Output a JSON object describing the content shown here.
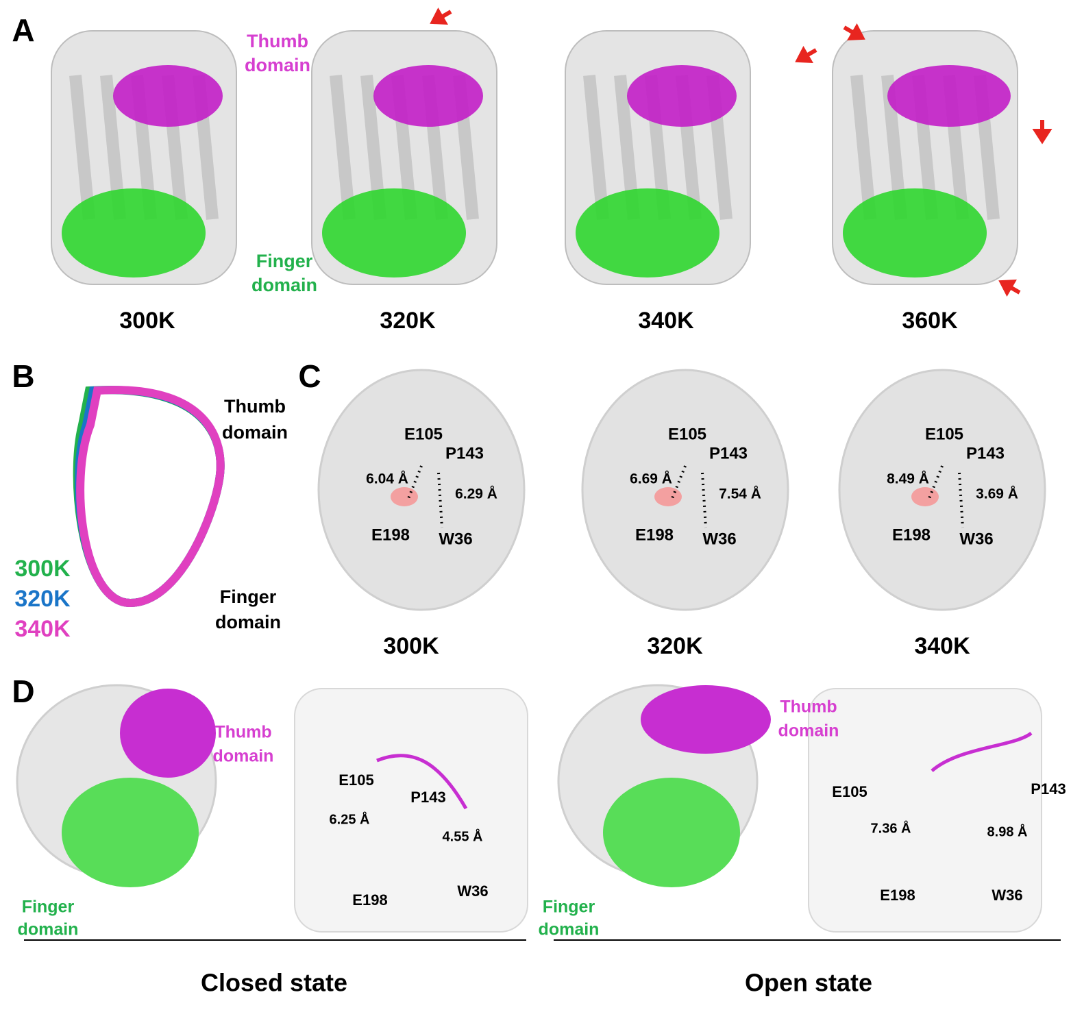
{
  "panel_a": {
    "label": "A",
    "thumb_label": [
      "Thumb",
      "domain"
    ],
    "finger_label": [
      "Finger",
      "domain"
    ],
    "temperatures": [
      "300K",
      "320K",
      "340K",
      "360K"
    ]
  },
  "panel_b": {
    "label": "B",
    "thumb_label": [
      "Thumb",
      "domain"
    ],
    "finger_label": [
      "Finger",
      "domain"
    ],
    "legend": [
      {
        "name": "300K",
        "color": "#22b14c"
      },
      {
        "name": "320K",
        "color": "#1a75c8"
      },
      {
        "name": "340K",
        "color": "#e040c0"
      }
    ]
  },
  "panel_c": {
    "label": "C",
    "structures": [
      {
        "temperature": "300K",
        "residues": [
          "E105",
          "P143",
          "E198",
          "W36"
        ],
        "distances": [
          "6.04 Å",
          "6.29 Å"
        ]
      },
      {
        "temperature": "320K",
        "residues": [
          "E105",
          "P143",
          "E198",
          "W36"
        ],
        "distances": [
          "6.69 Å",
          "7.54 Å"
        ]
      },
      {
        "temperature": "340K",
        "residues": [
          "E105",
          "P143",
          "E198",
          "W36"
        ],
        "distances": [
          "8.49 Å",
          "3.69 Å"
        ]
      }
    ]
  },
  "panel_d": {
    "label": "D",
    "states": [
      {
        "name": "Closed state",
        "thumb_label": [
          "Thumb",
          "domain"
        ],
        "finger_label": [
          "Finger",
          "domain"
        ],
        "residues": [
          "E105",
          "P143",
          "E198",
          "W36"
        ],
        "distances": [
          "6.25 Å",
          "4.55 Å"
        ]
      },
      {
        "name": "Open state",
        "thumb_label": [
          "Thumb",
          "domain"
        ],
        "finger_label": [
          "Finger",
          "domain"
        ],
        "residues": [
          "E105",
          "P143",
          "E198",
          "W36"
        ],
        "distances": [
          "7.36 Å",
          "8.98 Å"
        ]
      }
    ]
  }
}
